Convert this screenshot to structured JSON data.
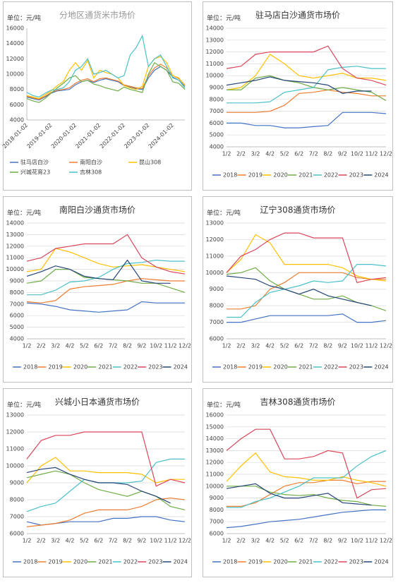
{
  "chart_data": [
    {
      "type": "line",
      "title": "分地区通货米市场价",
      "unit": "单位：元/吨",
      "categories": [
        "2018-01-02",
        null,
        null,
        null,
        "2019-01-02",
        null,
        null,
        null,
        "2020-01-02",
        null,
        null,
        null,
        "2021-01-02",
        null,
        null,
        null,
        "2022-01-02",
        null,
        null,
        null,
        "2023-01-02",
        null,
        null,
        null,
        "2024-01-02",
        null,
        null
      ],
      "ylim": [
        4000,
        16000
      ],
      "yticks": [
        4000,
        6000,
        8000,
        10000,
        12000,
        14000,
        16000
      ],
      "grid": false,
      "series": [
        {
          "name": "驻马店白沙",
          "color": "#4472c4",
          "values": [
            7000,
            6800,
            6600,
            7000,
            7500,
            7800,
            7900,
            8000,
            8600,
            9000,
            9200,
            8900,
            9200,
            9400,
            9200,
            9000,
            8500,
            8300,
            8100,
            8000,
            9500,
            10500,
            11000,
            10500,
            9600,
            9200,
            8400
          ]
        },
        {
          "name": "南阳白沙",
          "color": "#ed7d31",
          "values": [
            7100,
            6900,
            6700,
            7100,
            7600,
            7900,
            8000,
            8200,
            8800,
            9200,
            9400,
            9000,
            9400,
            9500,
            9300,
            9100,
            8600,
            8400,
            8200,
            8100,
            9800,
            10800,
            11300,
            10800,
            9800,
            9400,
            8600
          ]
        },
        {
          "name": "昆山308",
          "color": "#ffc000",
          "values": [
            7200,
            7000,
            6800,
            7300,
            7800,
            8500,
            9000,
            10500,
            11500,
            10500,
            11800,
            9500,
            10500,
            10200,
            10000,
            9500,
            8500,
            8200,
            8000,
            8400,
            11000,
            12000,
            12300,
            11500,
            9800,
            9500,
            8500
          ]
        },
        {
          "name": "兴城花育23",
          "color": "#70ad47",
          "values": [
            6800,
            6500,
            6300,
            6800,
            7500,
            8200,
            8800,
            9500,
            9800,
            9000,
            9200,
            8700,
            8500,
            8200,
            8000,
            7800,
            8300,
            8000,
            7800,
            7600,
            10000,
            11500,
            11000,
            10500,
            9000,
            8800,
            8000
          ]
        },
        {
          "name": "吉林308",
          "color": "#4bc0c8",
          "values": [
            7600,
            7200,
            7000,
            7500,
            7900,
            8000,
            8200,
            9000,
            10500,
            11000,
            12000,
            10000,
            10200,
            10500,
            10000,
            9500,
            9800,
            12500,
            13500,
            15000,
            11000,
            12000,
            12500,
            11000,
            9500,
            9200,
            8200
          ]
        }
      ]
    },
    {
      "type": "line",
      "title": "驻马店白沙通货市场价",
      "unit": "单位：元/吨",
      "categories": [
        "1/2",
        "2/2",
        "3/2",
        "4/2",
        "5/2",
        "6/2",
        "7/2",
        "8/2",
        "9/2",
        "10/2",
        "11/2",
        "12/2"
      ],
      "ylim": [
        4000,
        14000
      ],
      "yticks": [
        4000,
        5000,
        6000,
        7000,
        8000,
        9000,
        10000,
        11000,
        12000,
        13000,
        14000
      ],
      "grid": true,
      "series": [
        {
          "name": "2018",
          "color": "#4472c4",
          "values": [
            6000,
            6000,
            5800,
            5800,
            5600,
            5600,
            5700,
            5800,
            6900,
            6900,
            6900,
            6800
          ]
        },
        {
          "name": "2019",
          "color": "#ed7d31",
          "values": [
            6900,
            6900,
            6900,
            7000,
            7500,
            8500,
            8600,
            8800,
            8600,
            8500,
            8300,
            8300
          ]
        },
        {
          "name": "2020",
          "color": "#ffc000",
          "values": [
            8800,
            9000,
            10000,
            11800,
            11000,
            10000,
            9800,
            10000,
            10200,
            9800,
            9800,
            9600
          ]
        },
        {
          "name": "2021",
          "color": "#70ad47",
          "values": [
            8800,
            8800,
            9800,
            10000,
            9600,
            9400,
            9000,
            8800,
            9000,
            8800,
            8600,
            7900
          ]
        },
        {
          "name": "2022",
          "color": "#4bc0c8",
          "values": [
            7700,
            7700,
            7700,
            7800,
            8600,
            8800,
            9000,
            10500,
            10700,
            10800,
            10600,
            10600
          ]
        },
        {
          "name": "2023",
          "color": "#d9465a",
          "values": [
            10600,
            10800,
            11800,
            12000,
            12000,
            12000,
            12000,
            12500,
            10600,
            9800,
            9600,
            9200
          ]
        },
        {
          "name": "2024",
          "color": "#264478",
          "values": [
            9200,
            9400,
            9600,
            9900,
            9600,
            9500,
            9400,
            9200,
            8500,
            8700,
            8700,
            null
          ]
        }
      ]
    },
    {
      "type": "line",
      "title": "南阳白沙通货市场价",
      "unit": "单位：元/吨",
      "categories": [
        "1/2",
        "2/2",
        "3/2",
        "4/2",
        "5/2",
        "6/2",
        "7/2",
        "8/2",
        "9/2",
        "10/2",
        "11/2",
        "12/2"
      ],
      "ylim": [
        4000,
        14000
      ],
      "yticks": [
        4000,
        5000,
        6000,
        7000,
        8000,
        9000,
        10000,
        11000,
        12000,
        13000,
        14000
      ],
      "grid": true,
      "series": [
        {
          "name": "2018",
          "color": "#4472c4",
          "values": [
            7100,
            7000,
            6800,
            6500,
            6400,
            6300,
            6400,
            6500,
            7200,
            7100,
            7100,
            7100
          ]
        },
        {
          "name": "2019",
          "color": "#ed7d31",
          "values": [
            7200,
            7100,
            7300,
            8300,
            8500,
            8600,
            8700,
            9000,
            9200,
            9100,
            9000,
            9000
          ]
        },
        {
          "name": "2020",
          "color": "#ffc000",
          "values": [
            9800,
            10000,
            11800,
            11500,
            11000,
            10500,
            10200,
            10300,
            10400,
            10200,
            10000,
            9800
          ]
        },
        {
          "name": "2021",
          "color": "#70ad47",
          "values": [
            8800,
            9000,
            10000,
            10000,
            9300,
            9200,
            9100,
            9000,
            8800,
            8800,
            8400,
            8000
          ]
        },
        {
          "name": "2022",
          "color": "#4bc0c8",
          "values": [
            7800,
            7800,
            8200,
            8900,
            9000,
            9300,
            10000,
            10500,
            10600,
            10800,
            10700,
            10700
          ]
        },
        {
          "name": "2023",
          "color": "#d9465a",
          "values": [
            10700,
            11000,
            11800,
            12000,
            12200,
            12200,
            12200,
            13000,
            11000,
            10200,
            9800,
            9600
          ]
        },
        {
          "name": "2024",
          "color": "#264478",
          "values": [
            9400,
            9800,
            10300,
            10000,
            9400,
            9200,
            9100,
            10800,
            9000,
            8800,
            8800,
            null
          ]
        }
      ]
    },
    {
      "type": "line",
      "title": "辽宁308通货市场价",
      "unit": "单位：元/吨",
      "categories": [
        "1/2",
        "2/2",
        "3/2",
        "4/2",
        "5/2",
        "6/2",
        "7/2",
        "8/2",
        "9/2",
        "10/2",
        "11/2",
        "12/2"
      ],
      "ylim": [
        6000,
        13000
      ],
      "yticks": [
        6000,
        7000,
        8000,
        9000,
        10000,
        11000,
        12000,
        13000
      ],
      "grid": true,
      "series": [
        {
          "name": "2018",
          "color": "#4472c4",
          "values": [
            7000,
            7000,
            7200,
            7400,
            7400,
            7400,
            7400,
            7400,
            7500,
            7000,
            7000,
            7100
          ]
        },
        {
          "name": "2019",
          "color": "#ed7d31",
          "values": [
            7800,
            7800,
            8000,
            9000,
            9400,
            10000,
            10000,
            10000,
            10000,
            9700,
            9600,
            9600
          ]
        },
        {
          "name": "2020",
          "color": "#ffc000",
          "values": [
            10000,
            10800,
            12300,
            11800,
            10500,
            10500,
            10500,
            10500,
            10300,
            9800,
            9600,
            9500
          ]
        },
        {
          "name": "2021",
          "color": "#70ad47",
          "values": [
            9900,
            10000,
            10300,
            9500,
            9000,
            8700,
            8400,
            8400,
            8600,
            8200,
            8000,
            7700
          ]
        },
        {
          "name": "2022",
          "color": "#4bc0c8",
          "values": [
            7300,
            7300,
            8200,
            8800,
            9000,
            9200,
            9500,
            9400,
            9500,
            10500,
            10500,
            10400
          ]
        },
        {
          "name": "2023",
          "color": "#d9465a",
          "values": [
            10000,
            11000,
            11400,
            12000,
            12400,
            12400,
            12100,
            12100,
            12100,
            9400,
            9600,
            9700
          ]
        },
        {
          "name": "2024",
          "color": "#264478",
          "values": [
            9800,
            9700,
            9600,
            9200,
            9000,
            8700,
            9000,
            8600,
            8400,
            8200,
            8000,
            null
          ]
        }
      ]
    },
    {
      "type": "line",
      "title": "兴城小日本通货市场价",
      "unit": "单位：元/吨",
      "categories": [
        "1/2",
        "2/2",
        "3/2",
        "4/2",
        "5/2",
        "6/2",
        "7/2",
        "8/2",
        "9/2",
        "10/2",
        "11/2",
        "12/2"
      ],
      "ylim": [
        6000,
        13000
      ],
      "yticks": [
        6000,
        7000,
        8000,
        9000,
        10000,
        11000,
        12000,
        13000
      ],
      "grid": true,
      "series": [
        {
          "name": "2018",
          "color": "#4472c4",
          "values": [
            6700,
            6500,
            6600,
            6700,
            6700,
            6700,
            6900,
            6900,
            7000,
            7000,
            6800,
            6700
          ]
        },
        {
          "name": "2019",
          "color": "#ed7d31",
          "values": [
            6400,
            6500,
            6600,
            6800,
            7200,
            7400,
            7400,
            7400,
            7600,
            8000,
            8100,
            8000
          ]
        },
        {
          "name": "2020",
          "color": "#ffc000",
          "values": [
            9000,
            10000,
            10500,
            9700,
            9700,
            9600,
            9600,
            9600,
            9500,
            9000,
            9200,
            9200
          ]
        },
        {
          "name": "2021",
          "color": "#70ad47",
          "values": [
            9300,
            9500,
            9700,
            9500,
            9000,
            8600,
            8400,
            8200,
            8500,
            8200,
            7600,
            7400
          ]
        },
        {
          "name": "2022",
          "color": "#4bc0c8",
          "values": [
            7300,
            7600,
            7800,
            8500,
            9200,
            9000,
            9000,
            9000,
            9100,
            10200,
            10400,
            10400
          ]
        },
        {
          "name": "2023",
          "color": "#d9465a",
          "values": [
            10400,
            11500,
            11800,
            11800,
            12000,
            12000,
            12000,
            12000,
            12000,
            8800,
            9200,
            9000
          ]
        },
        {
          "name": "2024",
          "color": "#264478",
          "values": [
            9600,
            9800,
            9900,
            9500,
            9200,
            9000,
            9000,
            8900,
            8500,
            8200,
            7800,
            null
          ]
        }
      ]
    },
    {
      "type": "line",
      "title": "吉林308通货市场价",
      "unit": "单位：元/吨",
      "categories": [
        "1/2",
        "2/2",
        "3/2",
        "4/2",
        "5/2",
        "6/2",
        "7/2",
        "8/2",
        "9/2",
        "10/2",
        "11/2",
        "12/2"
      ],
      "ylim": [
        6000,
        16000
      ],
      "yticks": [
        6000,
        7000,
        8000,
        9000,
        10000,
        11000,
        12000,
        13000,
        14000,
        15000,
        16000
      ],
      "grid": true,
      "series": [
        {
          "name": "2018",
          "color": "#4472c4",
          "values": [
            6500,
            6600,
            6800,
            7000,
            7100,
            7200,
            7400,
            7600,
            7800,
            7900,
            8000,
            8000
          ]
        },
        {
          "name": "2019",
          "color": "#ed7d31",
          "values": [
            8300,
            8300,
            8600,
            9300,
            10000,
            10300,
            10300,
            10500,
            10500,
            10200,
            10400,
            10400
          ]
        },
        {
          "name": "2020",
          "color": "#ffc000",
          "values": [
            10400,
            11700,
            12800,
            11200,
            10800,
            10700,
            10500,
            10500,
            10800,
            10500,
            10300,
            10000
          ]
        },
        {
          "name": "2021",
          "color": "#70ad47",
          "values": [
            10000,
            10000,
            10000,
            9500,
            9300,
            9200,
            9300,
            9000,
            8800,
            8700,
            8400,
            8300
          ]
        },
        {
          "name": "2022",
          "color": "#4bc0c8",
          "values": [
            8200,
            8200,
            8700,
            9000,
            9500,
            10000,
            10700,
            10700,
            10700,
            11700,
            12500,
            13000
          ]
        },
        {
          "name": "2023",
          "color": "#d9465a",
          "values": [
            13000,
            14000,
            14800,
            14800,
            12300,
            12300,
            12500,
            13000,
            12800,
            9000,
            9700,
            9800
          ]
        },
        {
          "name": "2024",
          "color": "#264478",
          "values": [
            9800,
            10000,
            10200,
            9400,
            9000,
            9000,
            9200,
            9400,
            8600,
            8500,
            8400,
            null
          ]
        }
      ]
    }
  ]
}
